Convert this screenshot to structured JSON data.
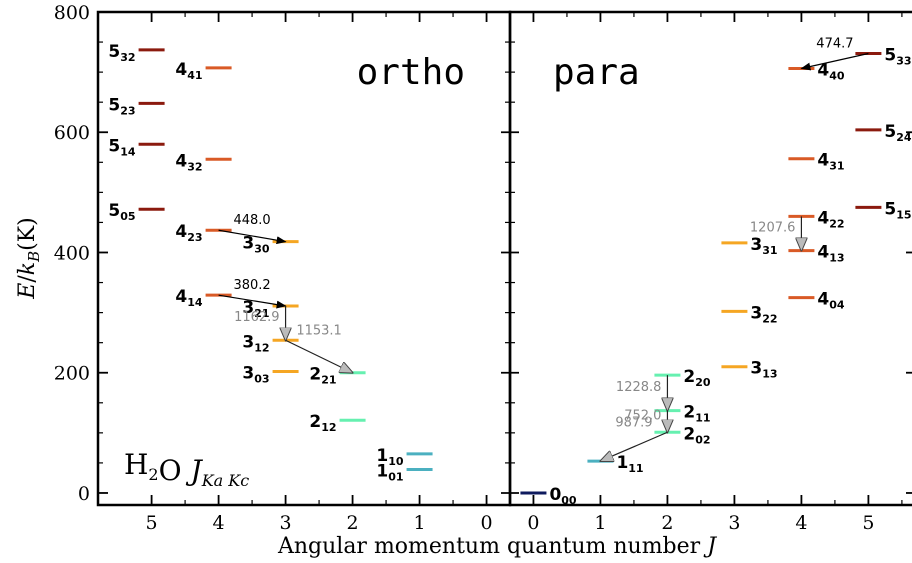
{
  "chart_data": {
    "type": "energy-level-diagram",
    "species_label": {
      "text": "H",
      "sub1": "2",
      "text2": "O ",
      "j": "J",
      "sub2": "Ka Kc"
    },
    "xlabel": "Angular momentum quantum number J",
    "ylabel": "E/k_B(K)",
    "ylim": [
      -20,
      800
    ],
    "yticks": [
      0,
      200,
      400,
      600,
      800
    ],
    "panels": [
      {
        "name": "ortho",
        "title": "ortho",
        "xlim": [
          5.8,
          -0.35
        ],
        "xticks": [
          5,
          4,
          3,
          2,
          1,
          0
        ],
        "levels": [
          {
            "J": 5,
            "main": "5",
            "sub": "32",
            "E": 737.0,
            "color": "#8b1a0e",
            "label_side": "left"
          },
          {
            "J": 5,
            "main": "5",
            "sub": "23",
            "E": 648.0,
            "color": "#8b1a0e",
            "label_side": "left"
          },
          {
            "J": 5,
            "main": "5",
            "sub": "14",
            "E": 580.0,
            "color": "#8b1a0e",
            "label_side": "left"
          },
          {
            "J": 5,
            "main": "5",
            "sub": "05",
            "E": 472.0,
            "color": "#8b1a0e",
            "label_side": "left"
          },
          {
            "J": 4,
            "main": "4",
            "sub": "41",
            "E": 707.0,
            "color": "#d95a26",
            "label_side": "left"
          },
          {
            "J": 4,
            "main": "4",
            "sub": "32",
            "E": 555.0,
            "color": "#d95a26",
            "label_side": "left"
          },
          {
            "J": 4,
            "main": "4",
            "sub": "23",
            "E": 437.0,
            "color": "#d95a26",
            "label_side": "left"
          },
          {
            "J": 4,
            "main": "4",
            "sub": "14",
            "E": 329.0,
            "color": "#d95a26",
            "label_side": "left"
          },
          {
            "J": 3,
            "main": "3",
            "sub": "30",
            "E": 418.0,
            "color": "#f5a623",
            "label_side": "left"
          },
          {
            "J": 3,
            "main": "3",
            "sub": "21",
            "E": 311.0,
            "color": "#f5a623",
            "label_side": "left"
          },
          {
            "J": 3,
            "main": "3",
            "sub": "12",
            "E": 254.0,
            "color": "#f5a623",
            "label_side": "left"
          },
          {
            "J": 3,
            "main": "3",
            "sub": "03",
            "E": 202.0,
            "color": "#f5a623",
            "label_side": "left"
          },
          {
            "J": 2,
            "main": "2",
            "sub": "21",
            "E": 200.0,
            "color": "#66f0b0",
            "label_side": "left"
          },
          {
            "J": 2,
            "main": "2",
            "sub": "12",
            "E": 121.0,
            "color": "#66f0b0",
            "label_side": "left"
          },
          {
            "J": 1,
            "main": "1",
            "sub": "10",
            "E": 65.0,
            "color": "#4bb0c0",
            "label_side": "left"
          },
          {
            "J": 1,
            "main": "1",
            "sub": "01",
            "E": 39.0,
            "color": "#4bb0c0",
            "label_side": "left"
          }
        ],
        "transitions": [
          {
            "from": [
              4,
              437
            ],
            "to": [
              3,
              418
            ],
            "label": "448.0",
            "color": "#000000"
          },
          {
            "from": [
              4,
              329
            ],
            "to": [
              3,
              311
            ],
            "label": "380.2",
            "color": "#000000"
          },
          {
            "from": [
              3,
              311
            ],
            "to": [
              3,
              254
            ],
            "label": "1162.9",
            "color": "#888888"
          },
          {
            "from": [
              3,
              254
            ],
            "to": [
              2,
              200
            ],
            "label": "1153.1",
            "color": "#888888"
          }
        ]
      },
      {
        "name": "para",
        "title": "para",
        "xlim": [
          -0.35,
          5.8
        ],
        "xticks": [
          0,
          1,
          2,
          3,
          4,
          5
        ],
        "levels": [
          {
            "J": 5,
            "main": "5",
            "sub": "33",
            "E": 731.0,
            "color": "#8b1a0e",
            "label_side": "right"
          },
          {
            "J": 5,
            "main": "5",
            "sub": "24",
            "E": 604.0,
            "color": "#8b1a0e",
            "label_side": "right"
          },
          {
            "J": 5,
            "main": "5",
            "sub": "15",
            "E": 475.0,
            "color": "#8b1a0e",
            "label_side": "right"
          },
          {
            "J": 4,
            "main": "4",
            "sub": "40",
            "E": 706.0,
            "color": "#d95a26",
            "label_side": "right"
          },
          {
            "J": 4,
            "main": "4",
            "sub": "31",
            "E": 556.0,
            "color": "#d95a26",
            "label_side": "right"
          },
          {
            "J": 4,
            "main": "4",
            "sub": "22",
            "E": 460.0,
            "color": "#d95a26",
            "label_side": "right"
          },
          {
            "J": 4,
            "main": "4",
            "sub": "13",
            "E": 403.0,
            "color": "#d95a26",
            "label_side": "right"
          },
          {
            "J": 4,
            "main": "4",
            "sub": "04",
            "E": 325.0,
            "color": "#d95a26",
            "label_side": "right"
          },
          {
            "J": 3,
            "main": "3",
            "sub": "31",
            "E": 416.0,
            "color": "#f5a623",
            "label_side": "right"
          },
          {
            "J": 3,
            "main": "3",
            "sub": "22",
            "E": 302.0,
            "color": "#f5a623",
            "label_side": "right"
          },
          {
            "J": 3,
            "main": "3",
            "sub": "13",
            "E": 210.0,
            "color": "#f5a623",
            "label_side": "right"
          },
          {
            "J": 2,
            "main": "2",
            "sub": "20",
            "E": 196.0,
            "color": "#66f0b0",
            "label_side": "right"
          },
          {
            "J": 2,
            "main": "2",
            "sub": "11",
            "E": 137.0,
            "color": "#66f0b0",
            "label_side": "right"
          },
          {
            "J": 2,
            "main": "2",
            "sub": "02",
            "E": 101.0,
            "color": "#66f0b0",
            "label_side": "right"
          },
          {
            "J": 1,
            "main": "1",
            "sub": "11",
            "E": 53.0,
            "color": "#4bb0c0",
            "label_side": "right"
          },
          {
            "J": 0,
            "main": "0",
            "sub": "00",
            "E": 0.0,
            "color": "#0e1a5e",
            "label_side": "right"
          }
        ],
        "transitions": [
          {
            "from": [
              5,
              731
            ],
            "to": [
              4,
              706
            ],
            "label": "474.7",
            "color": "#000000"
          },
          {
            "from": [
              4,
              460
            ],
            "to": [
              4,
              403
            ],
            "label": "1207.6",
            "color": "#888888"
          },
          {
            "from": [
              2,
              196
            ],
            "to": [
              2,
              137
            ],
            "label": "1228.8",
            "color": "#888888"
          },
          {
            "from": [
              2,
              137
            ],
            "to": [
              2,
              101
            ],
            "label": "752.0",
            "color": "#888888"
          },
          {
            "from": [
              2,
              101
            ],
            "to": [
              1,
              53
            ],
            "label": "987.9",
            "color": "#888888"
          }
        ]
      }
    ]
  }
}
